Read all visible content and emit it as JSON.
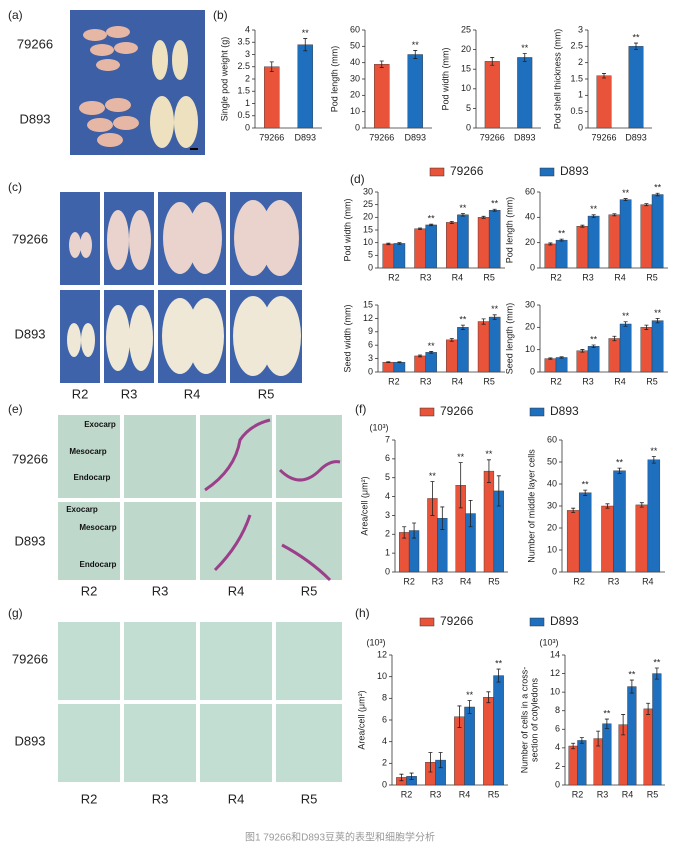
{
  "panels": {
    "a": "(a)",
    "b": "(b)",
    "c": "(c)",
    "d": "(d)",
    "e": "(e)",
    "f": "(f)",
    "g": "(g)",
    "h": "(h)"
  },
  "photo_labels": {
    "a_rows": [
      "79266",
      "D893"
    ],
    "c_rows": [
      "79266",
      "D893"
    ],
    "c_cols": [
      "R2",
      "R3",
      "R4",
      "R5"
    ],
    "e_rows": [
      "79266",
      "D893"
    ],
    "e_cols": [
      "R2",
      "R3",
      "R4",
      "R5"
    ],
    "e_tissue": [
      [
        "Exocarp",
        "Mesocarp",
        "Endocarp"
      ],
      [
        "Exocarp",
        "Mesocarp",
        "Endocarp"
      ]
    ],
    "g_rows": [
      "79266",
      "D893"
    ],
    "g_cols": [
      "R2",
      "R3",
      "R4",
      "R5"
    ]
  },
  "legends": [
    {
      "items": [
        {
          "name": "79266",
          "color": "#e8533a"
        },
        {
          "name": "D893",
          "color": "#1f6fbf"
        }
      ]
    },
    {
      "items": [
        {
          "name": "79266",
          "color": "#e8533a"
        },
        {
          "name": "D893",
          "color": "#1f6fbf"
        }
      ]
    },
    {
      "items": [
        {
          "name": "79266",
          "color": "#e8533a"
        },
        {
          "name": "D893",
          "color": "#1f6fbf"
        }
      ]
    }
  ],
  "caption": "图1 79266和D893豆荚的表型和细胞学分析",
  "chart_data": [
    {
      "type": "bar",
      "ylabel": [
        "Single pod weight (g)"
      ],
      "categories": [
        "79266",
        "D893"
      ],
      "ylim": [
        0,
        4
      ],
      "yticks": [
        0,
        0.5,
        1,
        1.5,
        2,
        2.5,
        3,
        3.5,
        4
      ],
      "series": [
        {
          "colors": [
            "#e8533a",
            "#1f6fbf"
          ],
          "values": [
            2.5,
            3.4
          ],
          "errors": [
            0.2,
            0.25
          ]
        }
      ],
      "annotations": [
        {
          "text": "**",
          "series": 0,
          "index": 1
        }
      ]
    },
    {
      "type": "bar",
      "ylabel": [
        "Pod length (mm)"
      ],
      "categories": [
        "79266",
        "D893"
      ],
      "ylim": [
        0,
        60
      ],
      "yticks": [
        0,
        10,
        20,
        30,
        40,
        50,
        60
      ],
      "series": [
        {
          "colors": [
            "#e8533a",
            "#1f6fbf"
          ],
          "values": [
            39,
            45
          ],
          "errors": [
            2,
            2.5
          ]
        }
      ],
      "annotations": [
        {
          "text": "**",
          "series": 0,
          "index": 1
        }
      ]
    },
    {
      "type": "bar",
      "ylabel": [
        "Pod width (mm)"
      ],
      "categories": [
        "79266",
        "D893"
      ],
      "ylim": [
        0,
        25
      ],
      "yticks": [
        0,
        5,
        10,
        15,
        20,
        25
      ],
      "series": [
        {
          "colors": [
            "#e8533a",
            "#1f6fbf"
          ],
          "values": [
            17,
            18
          ],
          "errors": [
            1,
            1
          ]
        }
      ],
      "annotations": [
        {
          "text": "**",
          "series": 0,
          "index": 1
        }
      ]
    },
    {
      "type": "bar",
      "ylabel": [
        "Pod shell thickness (mm)"
      ],
      "categories": [
        "79266",
        "D893"
      ],
      "ylim": [
        0,
        3
      ],
      "yticks": [
        0,
        0.5,
        1,
        1.5,
        2,
        2.5,
        3
      ],
      "series": [
        {
          "colors": [
            "#e8533a",
            "#1f6fbf"
          ],
          "values": [
            1.6,
            2.5
          ],
          "errors": [
            0.07,
            0.1
          ]
        }
      ],
      "annotations": [
        {
          "text": "**",
          "series": 0,
          "index": 1
        }
      ]
    },
    {
      "type": "bar",
      "ylabel": [
        "Pod width (mm)"
      ],
      "categories": [
        "R2",
        "R3",
        "R4",
        "R5"
      ],
      "ylim": [
        0,
        30
      ],
      "yticks": [
        0,
        5,
        10,
        15,
        20,
        25,
        30
      ],
      "series": [
        {
          "color": "#e8533a",
          "values": [
            9.5,
            15.5,
            18,
            20
          ],
          "errors": [
            0.3,
            0.3,
            0.4,
            0.4
          ]
        },
        {
          "color": "#1f6fbf",
          "values": [
            9.7,
            17,
            21,
            22.8
          ],
          "errors": [
            0.3,
            0.3,
            0.5,
            0.4
          ]
        }
      ],
      "annotations": [
        {
          "text": "**",
          "series": 1,
          "index": 1
        },
        {
          "text": "**",
          "series": 1,
          "index": 2
        },
        {
          "text": "**",
          "series": 1,
          "index": 3
        }
      ]
    },
    {
      "type": "bar",
      "ylabel": [
        "Pod length (mm)"
      ],
      "categories": [
        "R2",
        "R3",
        "R4",
        "R5"
      ],
      "ylim": [
        0,
        60
      ],
      "yticks": [
        0,
        20,
        40,
        60
      ],
      "series": [
        {
          "color": "#e8533a",
          "values": [
            19,
            33,
            42,
            50
          ],
          "errors": [
            0.8,
            0.8,
            0.8,
            0.8
          ]
        },
        {
          "color": "#1f6fbf",
          "values": [
            22,
            41,
            54,
            58
          ],
          "errors": [
            0.8,
            1,
            0.8,
            1
          ]
        }
      ],
      "annotations": [
        {
          "text": "**",
          "series": 1,
          "index": 0
        },
        {
          "text": "**",
          "series": 1,
          "index": 1
        },
        {
          "text": "**",
          "series": 1,
          "index": 2
        },
        {
          "text": "**",
          "series": 1,
          "index": 3
        }
      ]
    },
    {
      "type": "bar",
      "ylabel": [
        "Seed width (mm)"
      ],
      "categories": [
        "R2",
        "R3",
        "R4",
        "R5"
      ],
      "ylim": [
        0,
        15
      ],
      "yticks": [
        0,
        3,
        6,
        9,
        12,
        15
      ],
      "series": [
        {
          "color": "#e8533a",
          "values": [
            2.2,
            3.6,
            7.2,
            11.3
          ],
          "errors": [
            0.1,
            0.2,
            0.3,
            0.6
          ]
        },
        {
          "color": "#1f6fbf",
          "values": [
            2.2,
            4.4,
            10,
            12.3
          ],
          "errors": [
            0.1,
            0.2,
            0.5,
            0.5
          ]
        }
      ],
      "annotations": [
        {
          "text": "**",
          "series": 1,
          "index": 1
        },
        {
          "text": "**",
          "series": 1,
          "index": 2
        },
        {
          "text": "**",
          "series": 1,
          "index": 3
        }
      ]
    },
    {
      "type": "bar",
      "ylabel": [
        "Seed length (mm)"
      ],
      "categories": [
        "R2",
        "R3",
        "R4",
        "R5"
      ],
      "ylim": [
        0,
        30
      ],
      "yticks": [
        0,
        10,
        20,
        30
      ],
      "series": [
        {
          "color": "#e8533a",
          "values": [
            6,
            9.5,
            15,
            20
          ],
          "errors": [
            0.3,
            0.6,
            1,
            1
          ]
        },
        {
          "color": "#1f6fbf",
          "values": [
            6.5,
            11.5,
            21.5,
            23
          ],
          "errors": [
            0.3,
            0.6,
            1,
            1
          ]
        }
      ],
      "annotations": [
        {
          "text": "**",
          "series": 1,
          "index": 1
        },
        {
          "text": "**",
          "series": 1,
          "index": 2
        },
        {
          "text": "**",
          "series": 1,
          "index": 3
        }
      ]
    },
    {
      "type": "bar",
      "ylabel": [
        "Area/cell (μm²)"
      ],
      "y_unit": "(10³)",
      "categories": [
        "R2",
        "R3",
        "R4",
        "R5"
      ],
      "ylim": [
        0,
        7
      ],
      "yticks": [
        0,
        1,
        2,
        3,
        4,
        5,
        6,
        7
      ],
      "series": [
        {
          "color": "#e8533a",
          "values": [
            2.1,
            3.9,
            4.6,
            5.35
          ],
          "errors": [
            0.3,
            0.9,
            1.2,
            0.6
          ]
        },
        {
          "color": "#1f6fbf",
          "values": [
            2.2,
            2.85,
            3.1,
            4.3
          ],
          "errors": [
            0.4,
            0.6,
            0.7,
            0.8
          ]
        }
      ],
      "annotations": [
        {
          "text": "**",
          "series": 0,
          "index": 1
        },
        {
          "text": "**",
          "series": 0,
          "index": 2
        },
        {
          "text": "**",
          "series": 0,
          "index": 3
        }
      ]
    },
    {
      "type": "bar",
      "ylabel": [
        "Number of middle layer cells"
      ],
      "categories": [
        "R2",
        "R3",
        "R4"
      ],
      "ylim": [
        0,
        60
      ],
      "yticks": [
        0,
        10,
        20,
        30,
        40,
        50,
        60
      ],
      "series": [
        {
          "color": "#e8533a",
          "values": [
            28,
            30,
            30.5
          ],
          "errors": [
            1,
            1,
            1
          ]
        },
        {
          "color": "#1f6fbf",
          "values": [
            36,
            46,
            51
          ],
          "errors": [
            1.2,
            1.2,
            1.5
          ]
        }
      ],
      "annotations": [
        {
          "text": "**",
          "series": 1,
          "index": 0
        },
        {
          "text": "**",
          "series": 1,
          "index": 1
        },
        {
          "text": "**",
          "series": 1,
          "index": 2
        }
      ]
    },
    {
      "type": "bar",
      "ylabel": [
        "Area/cell (μm²)"
      ],
      "y_unit": "(10³)",
      "categories": [
        "R2",
        "R3",
        "R4",
        "R5"
      ],
      "ylim": [
        0,
        12
      ],
      "yticks": [
        0,
        2,
        4,
        6,
        8,
        10,
        12
      ],
      "series": [
        {
          "color": "#e8533a",
          "values": [
            0.7,
            2.1,
            6.3,
            8.1
          ],
          "errors": [
            0.3,
            0.9,
            1,
            0.5
          ]
        },
        {
          "color": "#1f6fbf",
          "values": [
            0.8,
            2.3,
            7.2,
            10.1
          ],
          "errors": [
            0.3,
            0.7,
            0.6,
            0.6
          ]
        }
      ],
      "annotations": [
        {
          "text": "**",
          "series": 1,
          "index": 2
        },
        {
          "text": "**",
          "series": 1,
          "index": 3
        }
      ]
    },
    {
      "type": "bar",
      "ylabel": [
        "Number of cells in a cross-",
        "section of cotyledons"
      ],
      "y_unit": "(10³)",
      "categories": [
        "R2",
        "R3",
        "R4",
        "R5"
      ],
      "ylim": [
        0,
        14
      ],
      "yticks": [
        0,
        2,
        4,
        6,
        8,
        10,
        12,
        14
      ],
      "series": [
        {
          "color": "#e8533a",
          "values": [
            4.2,
            5,
            6.5,
            8.2
          ],
          "errors": [
            0.3,
            0.8,
            1.1,
            0.6
          ]
        },
        {
          "color": "#1f6fbf",
          "values": [
            4.8,
            6.6,
            10.6,
            12
          ],
          "errors": [
            0.3,
            0.5,
            0.7,
            0.6
          ]
        }
      ],
      "annotations": [
        {
          "text": "**",
          "series": 1,
          "index": 1
        },
        {
          "text": "**",
          "series": 1,
          "index": 2
        },
        {
          "text": "**",
          "series": 1,
          "index": 3
        }
      ]
    }
  ]
}
